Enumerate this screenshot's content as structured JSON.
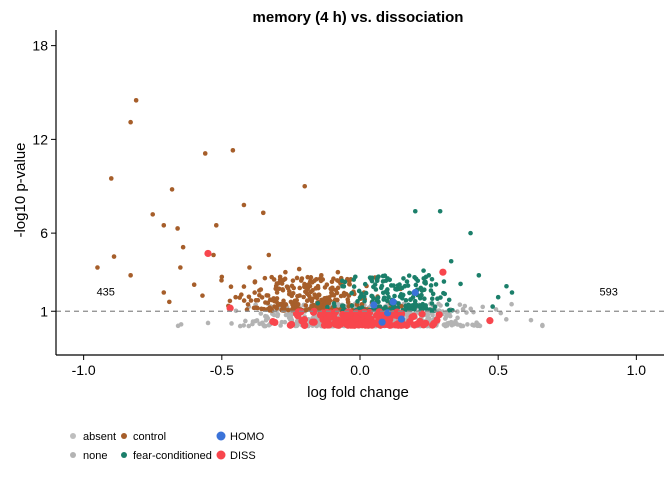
{
  "chart_data": {
    "type": "scatter",
    "title": "memory (4 h) vs. dissociation",
    "xlabel": "log fold change",
    "ylabel": "-log10 p-value",
    "xlim": [
      -1.1,
      1.1
    ],
    "ylim": [
      -1.8,
      19
    ],
    "x_ticks": [
      "-1.0",
      "-0.5",
      "0.0",
      "0.5",
      "1.0"
    ],
    "y_ticks": [
      "1",
      "6",
      "12",
      "18"
    ],
    "x_tick_values": [
      -1.0,
      -0.5,
      0.0,
      0.5,
      1.0
    ],
    "y_tick_values": [
      1,
      6,
      12,
      18
    ],
    "threshold_line": 1,
    "grid": false,
    "legend_position": "bottom-left",
    "counts": {
      "left": "435",
      "right": "593",
      "left_x": -0.92,
      "right_x": 0.9,
      "y": 2.0
    },
    "series": [
      {
        "name": "absent",
        "color": "#bebebe",
        "generated": {
          "n": 0,
          "x_mean": 0,
          "x_sd": 0,
          "y_max": 0
        }
      },
      {
        "name": "none",
        "color": "#b3b3b3",
        "generated": {
          "n": 650,
          "x_mean": 0.02,
          "x_sd": 0.2,
          "y_min": 0.05,
          "y_max": 1.5
        }
      },
      {
        "name": "control",
        "color": "#a65e2a",
        "x": [
          -0.81,
          -0.83,
          -0.9,
          -0.56,
          -0.46,
          -0.68,
          -0.75,
          -0.71,
          -0.66,
          -0.52,
          -0.42,
          -0.35,
          -0.2,
          -0.89,
          -0.95,
          -0.83,
          -0.64,
          -0.65,
          -0.53,
          -0.5,
          -0.4,
          -0.27,
          -0.33,
          -0.22,
          -0.14,
          -0.08,
          -0.3,
          -0.18,
          -0.1,
          -0.05,
          -0.25,
          -0.16,
          -0.69,
          -0.71,
          -0.6,
          -0.57,
          -0.45,
          -0.38,
          -0.28,
          -0.12,
          -0.04
        ],
        "y": [
          14.5,
          13.1,
          9.5,
          11.1,
          11.3,
          8.8,
          7.2,
          6.5,
          6.3,
          6.5,
          7.8,
          7.3,
          9.0,
          4.5,
          3.8,
          3.3,
          5.1,
          3.8,
          4.6,
          3.2,
          3.8,
          3.5,
          4.6,
          3.7,
          3.3,
          3.5,
          2.2,
          2.9,
          2.5,
          2.1,
          1.6,
          1.9,
          1.6,
          2.2,
          2.7,
          2.0,
          1.9,
          2.9,
          2.4,
          2.7,
          2.0
        ],
        "generated": {
          "n": 260,
          "x_mean": -0.2,
          "x_sd": 0.13,
          "y_min": 1.05,
          "y_max": 3.2
        }
      },
      {
        "name": "fear-conditioned",
        "color": "#1b7f6a",
        "x": [
          0.2,
          0.29,
          0.4,
          0.53,
          0.55,
          0.43,
          0.33,
          0.23,
          0.1,
          0.17,
          0.5,
          0.48
        ],
        "y": [
          7.4,
          7.4,
          6.0,
          2.6,
          2.2,
          3.3,
          4.2,
          3.6,
          3.1,
          2.9,
          1.9,
          1.3
        ],
        "generated": {
          "n": 200,
          "x_mean": 0.13,
          "x_sd": 0.1,
          "y_min": 1.05,
          "y_max": 3.3
        }
      },
      {
        "name": "HOMO",
        "color": "#3b73d9",
        "x": [
          0.12,
          0.08,
          0.15,
          0.2,
          0.1,
          0.05
        ],
        "y": [
          1.6,
          0.3,
          0.5,
          2.2,
          0.9,
          1.4
        ]
      },
      {
        "name": "DISS",
        "color": "#f8464d",
        "x": [
          -0.55,
          -0.47,
          0.3,
          0.47
        ],
        "y": [
          4.7,
          1.2,
          3.5,
          0.4
        ],
        "generated": {
          "n": 170,
          "x_mean": 0.0,
          "x_sd": 0.13,
          "y_min": 0.1,
          "y_max": 1.0
        }
      }
    ]
  }
}
